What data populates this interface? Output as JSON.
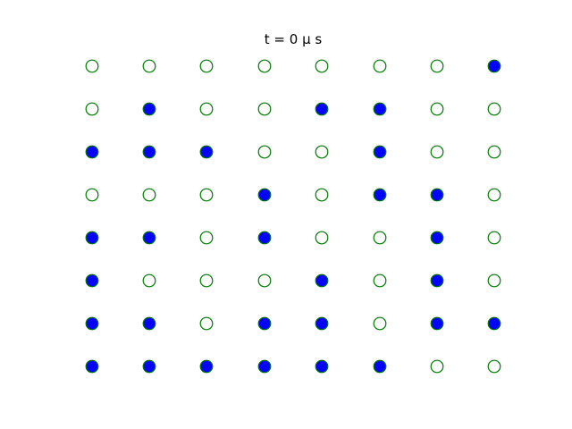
{
  "title": "t = 0 μ s",
  "colors": {
    "filled": "#0000ff",
    "outline": "#007a00",
    "empty": "#ffffff",
    "background": "#ffffff"
  },
  "grid": {
    "rows": 8,
    "cols": 8,
    "occupancy": [
      [
        0,
        0,
        0,
        0,
        0,
        0,
        0,
        1
      ],
      [
        0,
        1,
        0,
        0,
        1,
        1,
        0,
        0
      ],
      [
        1,
        1,
        1,
        0,
        0,
        1,
        0,
        0
      ],
      [
        0,
        0,
        0,
        1,
        0,
        1,
        1,
        0
      ],
      [
        1,
        1,
        0,
        1,
        0,
        0,
        1,
        0
      ],
      [
        1,
        0,
        0,
        0,
        1,
        0,
        1,
        0
      ],
      [
        1,
        1,
        0,
        1,
        1,
        0,
        1,
        1
      ],
      [
        1,
        1,
        1,
        1,
        1,
        1,
        0,
        0
      ]
    ]
  }
}
